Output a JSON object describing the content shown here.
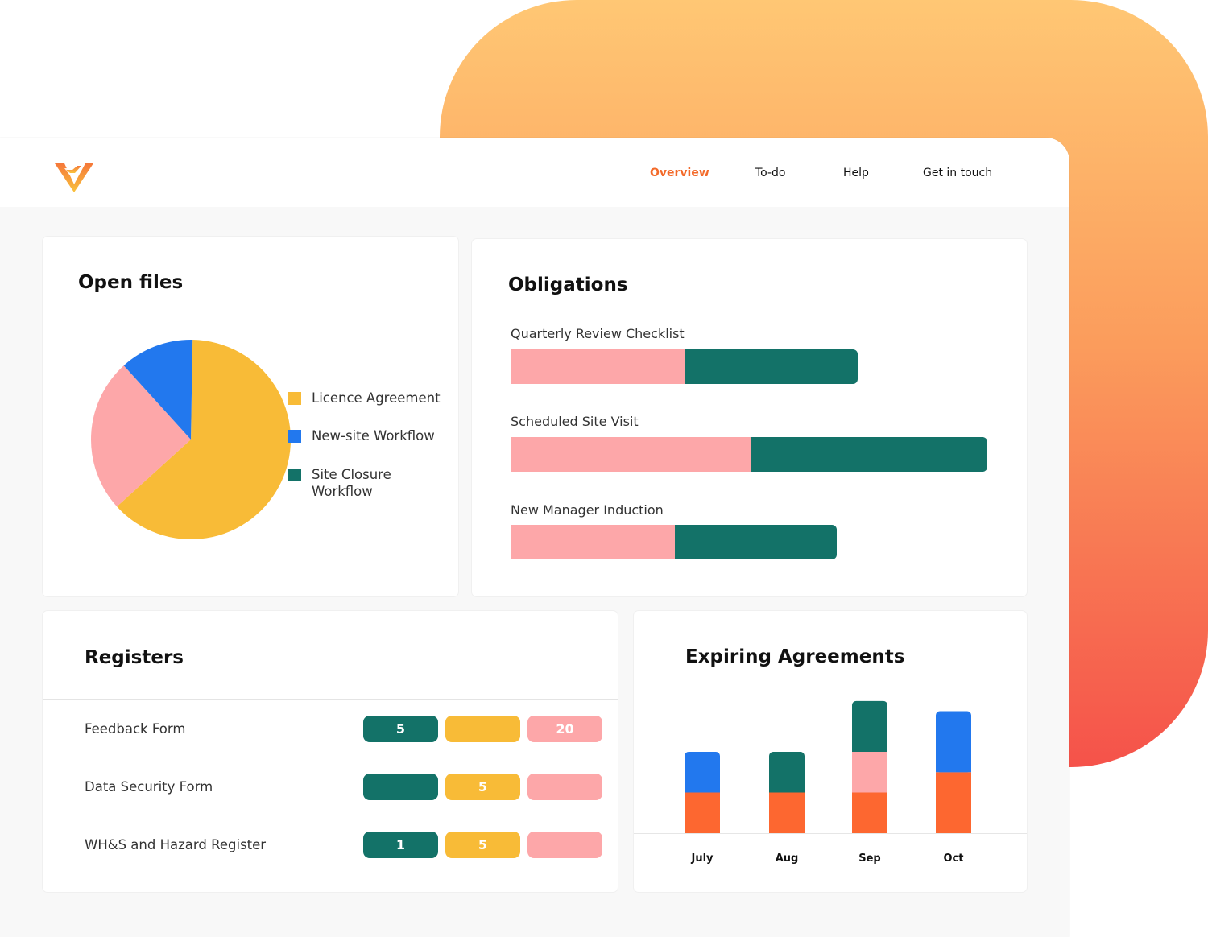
{
  "nav": {
    "items": [
      {
        "label": "Overview",
        "active": true
      },
      {
        "label": "To-do",
        "active": false
      },
      {
        "label": "Help",
        "active": false
      },
      {
        "label": "Get in touch",
        "active": false
      }
    ]
  },
  "colors": {
    "accent": "#f36a2a",
    "yellow": "#f8bb37",
    "blue": "#2278ee",
    "teal": "#137268",
    "pink": "#fda7a9",
    "orange": "#fd6730"
  },
  "open_files": {
    "title": "Open files",
    "legend": [
      "Licence Agreement",
      "New-site Workflow",
      "Site Closure Workflow"
    ]
  },
  "obligations": {
    "title": "Obligations",
    "items": [
      {
        "label": "Quarterly Review Checklist",
        "pink": 217,
        "teal": 214
      },
      {
        "label": "Scheduled Site Visit",
        "pink": 298,
        "teal": 294
      },
      {
        "label": "New Manager Induction",
        "pink": 204,
        "teal": 201
      }
    ]
  },
  "registers": {
    "title": "Registers",
    "rows": [
      {
        "label": "Feedback Form",
        "teal": "5",
        "yellow": "",
        "pink": "20"
      },
      {
        "label": "Data Security Form",
        "teal": "",
        "yellow": "5",
        "pink": ""
      },
      {
        "label": "WH&S and Hazard Register",
        "teal": "1",
        "yellow": "5",
        "pink": ""
      }
    ]
  },
  "expiring": {
    "title": "Expiring Agreements"
  },
  "chart_data": [
    {
      "type": "pie",
      "title": "Open files",
      "categories": [
        "Licence Agreement",
        "New-site Workflow",
        "Site Closure Workflow"
      ],
      "values": [
        63,
        12,
        25
      ],
      "colors": [
        "#f8bb37",
        "#2278ee",
        "#fda7a9"
      ],
      "legend_position": "right"
    },
    {
      "type": "bar",
      "stacked": true,
      "title": "Expiring Agreements",
      "categories": [
        "July",
        "Aug",
        "Sep",
        "Oct"
      ],
      "series": [
        {
          "values": [
            1,
            1,
            1,
            1.5
          ],
          "color": "#fd6730"
        },
        {
          "values": [
            0,
            0,
            1,
            0
          ],
          "color": "#fda7a9"
        },
        {
          "values": [
            0,
            1,
            1.25,
            0
          ],
          "color": "#137268"
        },
        {
          "values": [
            1,
            0,
            0,
            1.5
          ],
          "color": "#2278ee"
        }
      ],
      "ylim": [
        0,
        3.5
      ]
    }
  ]
}
